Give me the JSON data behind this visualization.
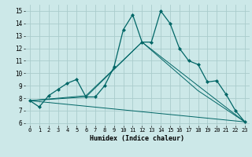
{
  "xlabel": "Humidex (Indice chaleur)",
  "xlim": [
    -0.5,
    23.5
  ],
  "ylim": [
    5.8,
    15.5
  ],
  "yticks": [
    6,
    7,
    8,
    9,
    10,
    11,
    12,
    13,
    14,
    15
  ],
  "xticks": [
    0,
    1,
    2,
    3,
    4,
    5,
    6,
    7,
    8,
    9,
    10,
    11,
    12,
    13,
    14,
    15,
    16,
    17,
    18,
    19,
    20,
    21,
    22,
    23
  ],
  "bg_color": "#cce8e8",
  "grid_color": "#aacccc",
  "line_color": "#006666",
  "main_line": {
    "x": [
      0,
      1,
      2,
      3,
      4,
      5,
      6,
      7,
      8,
      9,
      10,
      11,
      12,
      13,
      14,
      15,
      16,
      17,
      18,
      19,
      20,
      21,
      22,
      23
    ],
    "y": [
      7.8,
      7.3,
      8.2,
      8.7,
      9.2,
      9.5,
      8.1,
      8.1,
      9.0,
      10.5,
      13.5,
      14.7,
      12.5,
      12.5,
      15.0,
      14.0,
      12.0,
      11.0,
      10.7,
      9.3,
      9.4,
      8.3,
      7.0,
      6.1
    ]
  },
  "extra_lines": [
    {
      "x": [
        0,
        6,
        12,
        18,
        23
      ],
      "y": [
        7.8,
        8.1,
        12.5,
        9.0,
        6.1
      ]
    },
    {
      "x": [
        0,
        6,
        12,
        18,
        23
      ],
      "y": [
        7.8,
        8.2,
        12.5,
        8.6,
        6.1
      ]
    },
    {
      "x": [
        0,
        23
      ],
      "y": [
        7.8,
        6.1
      ]
    }
  ]
}
